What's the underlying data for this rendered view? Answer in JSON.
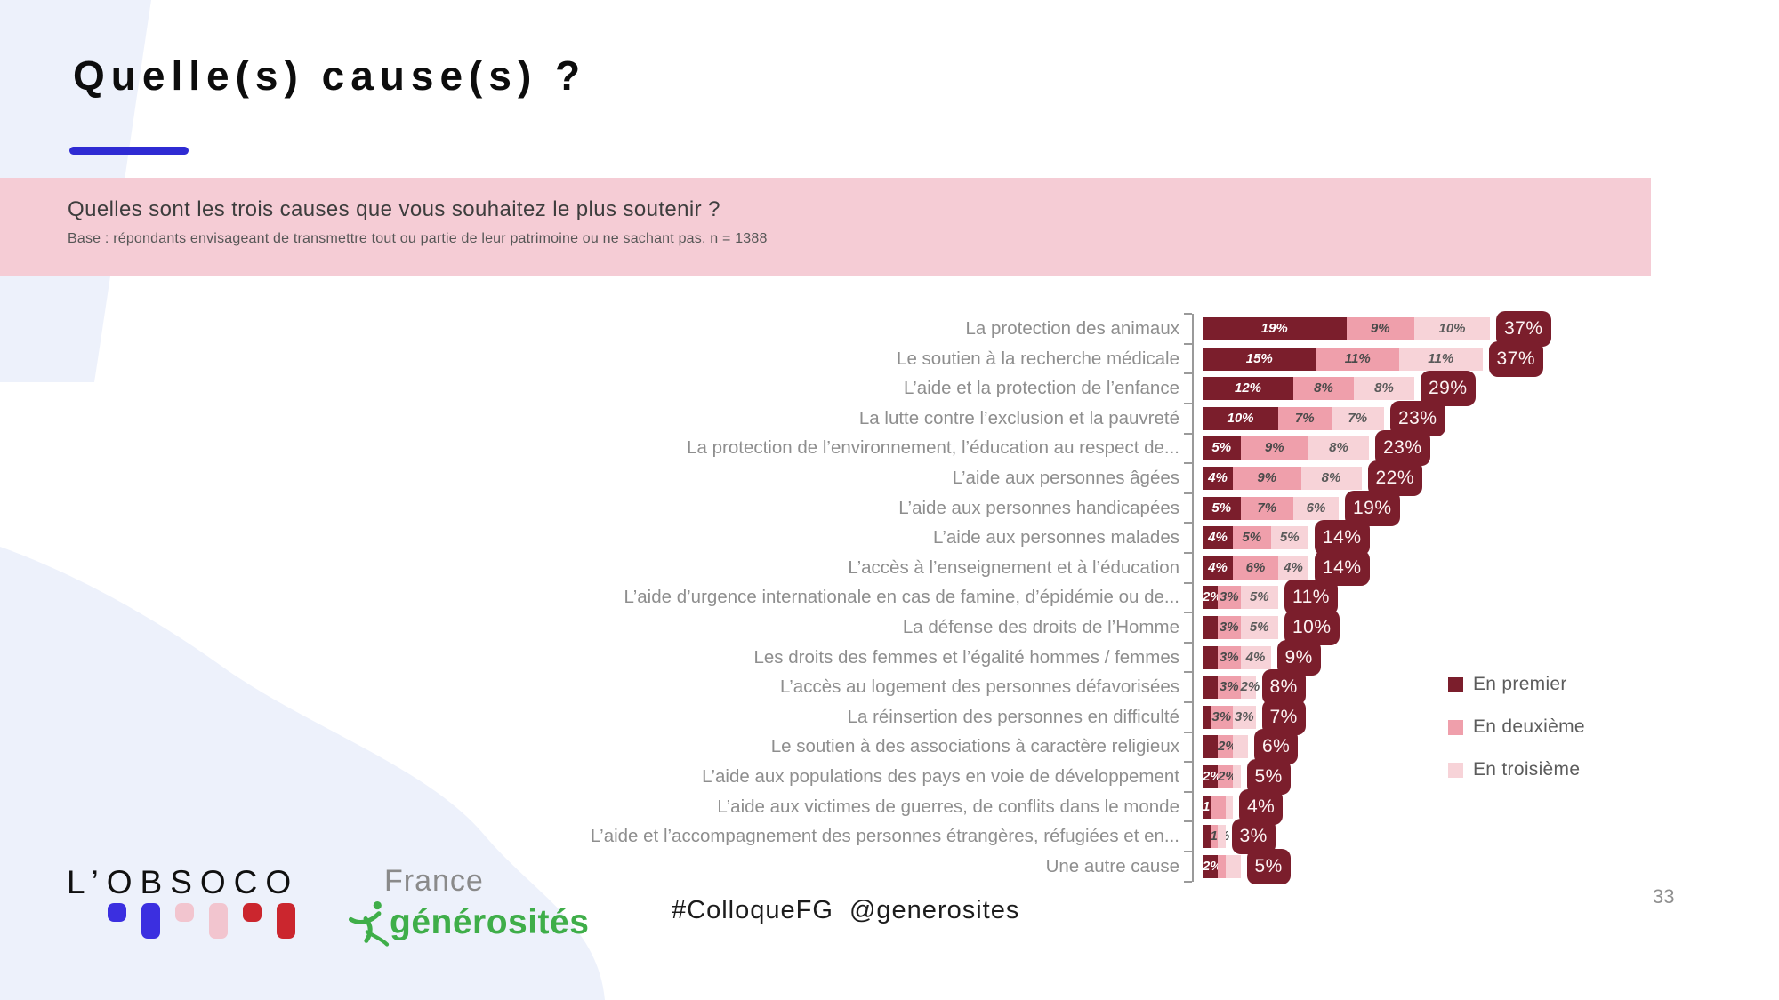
{
  "slide": {
    "title": "Quelle(s) cause(s) ?",
    "page_number": "33",
    "hashtag": "#ColloqueFG  @generosites"
  },
  "banner": {
    "question": "Quelles sont les trois causes que vous souhaitez le plus soutenir ?",
    "base": "Base : répondants envisageant de transmettre tout ou partie de leur patrimoine ou ne sachant pas, n = 1388"
  },
  "colors": {
    "premier": "#7b1e2c",
    "deuxieme": "#ef9fab",
    "troisieme": "#f7d3d8",
    "banner_pink": "#f5ccd5",
    "accent_blue": "#2f2bd3",
    "decor_lavender": "#edf1fb",
    "badge": "#7b1e2c",
    "fg_green": "#3fae49",
    "obsoco_blue": "#3b2fe0",
    "obsoco_pink": "#f2c5cf",
    "obsoco_red": "#cb262e"
  },
  "legend": [
    {
      "label": "En premier",
      "color": "#7b1e2c"
    },
    {
      "label": "En deuxième",
      "color": "#ef9fab"
    },
    {
      "label": "En troisième",
      "color": "#f7d3d8"
    }
  ],
  "logos": {
    "obsoco": "L’OBSOCO",
    "france_line1": "France",
    "france_line2": "générosités"
  },
  "chart_data": {
    "type": "bar",
    "orientation": "horizontal",
    "stacked": true,
    "unit": "%",
    "series_names": [
      "En premier",
      "En deuxième",
      "En troisième"
    ],
    "series_colors": [
      "#7b1e2c",
      "#ef9fab",
      "#f7d3d8"
    ],
    "segment_label_colors": [
      "#ffffff",
      "#4a4a4a",
      "#5a5a5a"
    ],
    "legend_position": "right",
    "xlim": [
      0,
      40
    ],
    "rows": [
      {
        "label": "La protection des animaux",
        "values": [
          19,
          9,
          10
        ],
        "segment_labels": [
          "19%",
          "9%",
          "10%"
        ],
        "total": "37%"
      },
      {
        "label": "Le soutien à la recherche médicale",
        "values": [
          15,
          11,
          11
        ],
        "segment_labels": [
          "15%",
          "11%",
          "11%"
        ],
        "total": "37%"
      },
      {
        "label": "L’aide et la protection de l’enfance",
        "values": [
          12,
          8,
          8
        ],
        "segment_labels": [
          "12%",
          "8%",
          "8%"
        ],
        "total": "29%"
      },
      {
        "label": "La lutte contre l’exclusion et la pauvreté",
        "values": [
          10,
          7,
          7
        ],
        "segment_labels": [
          "10%",
          "7%",
          "7%"
        ],
        "total": "23%"
      },
      {
        "label": "La protection de l’environnement, l’éducation au respect de...",
        "values": [
          5,
          9,
          8
        ],
        "segment_labels": [
          "5%",
          "9%",
          "8%"
        ],
        "total": "23%"
      },
      {
        "label": "L’aide aux personnes âgées",
        "values": [
          4,
          9,
          8
        ],
        "segment_labels": [
          "4%",
          "9%",
          "8%"
        ],
        "total": "22%"
      },
      {
        "label": "L’aide aux personnes handicapées",
        "values": [
          5,
          7,
          6
        ],
        "segment_labels": [
          "5%",
          "7%",
          "6%"
        ],
        "total": "19%"
      },
      {
        "label": "L’aide aux personnes malades",
        "values": [
          4,
          5,
          5
        ],
        "segment_labels": [
          "4%",
          "5%",
          "5%"
        ],
        "total": "14%"
      },
      {
        "label": "L’accès à l’enseignement et à l’éducation",
        "values": [
          4,
          6,
          4
        ],
        "segment_labels": [
          "4%",
          "6%",
          "4%"
        ],
        "total": "14%"
      },
      {
        "label": "L’aide d’urgence internationale en cas de famine, d’épidémie ou de...",
        "values": [
          2,
          3,
          5
        ],
        "segment_labels": [
          "2%",
          "3%",
          "5%"
        ],
        "total": "11%"
      },
      {
        "label": "La défense des droits de l’Homme",
        "values": [
          2,
          3,
          5
        ],
        "segment_labels": [
          "",
          "3%",
          "5%"
        ],
        "total": "10%"
      },
      {
        "label": "Les droits des femmes et l’égalité hommes / femmes",
        "values": [
          2,
          3,
          4
        ],
        "segment_labels": [
          "",
          "3%",
          "4%"
        ],
        "total": "9%"
      },
      {
        "label": "L’accès au logement des personnes défavorisées",
        "values": [
          2,
          3,
          2
        ],
        "segment_labels": [
          "",
          "3%",
          "2%"
        ],
        "total": "8%"
      },
      {
        "label": "La réinsertion des personnes en difficulté",
        "values": [
          1,
          3,
          3
        ],
        "segment_labels": [
          "",
          "3%",
          "3%"
        ],
        "total": "7%"
      },
      {
        "label": "Le soutien à des associations à caractère religieux",
        "values": [
          2,
          2,
          2
        ],
        "segment_labels": [
          "",
          "2%",
          ""
        ],
        "total": "6%"
      },
      {
        "label": "L’aide aux populations des pays en voie de développement",
        "values": [
          2,
          2,
          1
        ],
        "segment_labels": [
          "2%",
          "2%",
          ""
        ],
        "total": "5%"
      },
      {
        "label": "L’aide aux victimes de guerres, de conflits dans le monde",
        "values": [
          1,
          2,
          1
        ],
        "segment_labels": [
          "1%",
          "",
          ""
        ],
        "total": "4%"
      },
      {
        "label": "L’aide et l’accompagnement des personnes étrangères, réfugiées et en...",
        "values": [
          1,
          1,
          1
        ],
        "segment_labels": [
          "",
          "1%",
          ""
        ],
        "total": "3%"
      },
      {
        "label": "Une autre cause",
        "values": [
          2,
          1,
          2
        ],
        "segment_labels": [
          "2%",
          "",
          ""
        ],
        "total": "5%"
      }
    ]
  }
}
